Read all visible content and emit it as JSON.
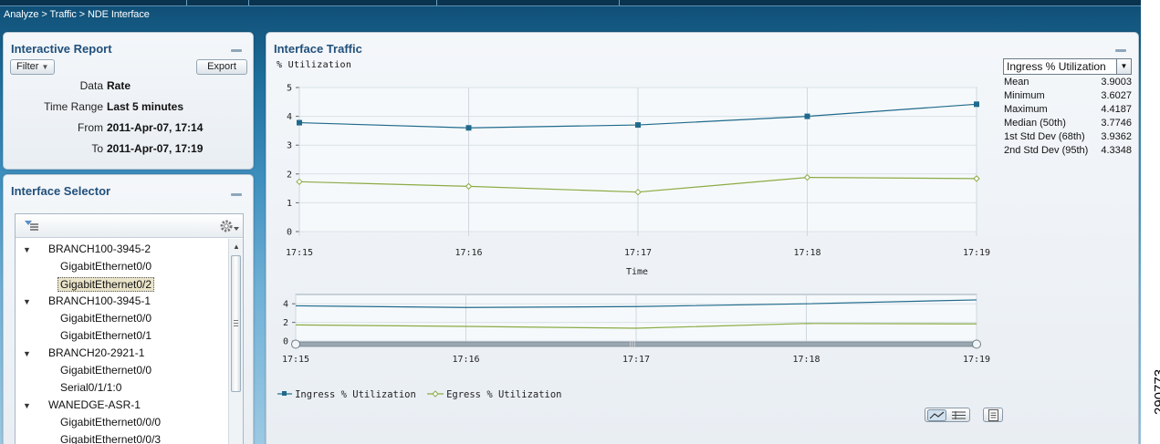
{
  "breadcrumb": "Analyze > Traffic > NDE Interface",
  "report": {
    "title": "Interactive Report",
    "filter_label": "Filter",
    "export_label": "Export",
    "fields": [
      {
        "label": "Data",
        "value": "Rate"
      },
      {
        "label": "Time Range",
        "value": "Last 5 minutes"
      },
      {
        "label": "From",
        "value": "2011-Apr-07, 17:14"
      },
      {
        "label": "To",
        "value": "2011-Apr-07, 17:19"
      }
    ]
  },
  "selector": {
    "title": "Interface Selector",
    "tree": [
      {
        "text": "BRANCH100-3945-2",
        "level": 0,
        "expanded": true
      },
      {
        "text": "GigabitEthernet0/0",
        "level": 1
      },
      {
        "text": "GigabitEthernet0/2",
        "level": 1,
        "selected": true
      },
      {
        "text": "BRANCH100-3945-1",
        "level": 0,
        "expanded": true
      },
      {
        "text": "GigabitEthernet0/0",
        "level": 1
      },
      {
        "text": "GigabitEthernet0/1",
        "level": 1
      },
      {
        "text": "BRANCH20-2921-1",
        "level": 0,
        "expanded": true
      },
      {
        "text": "GigabitEthernet0/0",
        "level": 1
      },
      {
        "text": "Serial0/1/1:0",
        "level": 1
      },
      {
        "text": "WANEDGE-ASR-1",
        "level": 0,
        "expanded": true
      },
      {
        "text": "GigabitEthernet0/0/0",
        "level": 1
      },
      {
        "text": "GigabitEthernet0/0/3",
        "level": 1
      }
    ]
  },
  "traffic": {
    "title": "Interface Traffic",
    "ylabel": "% Utilization",
    "metric_select": "Ingress % Utilization",
    "stats": [
      {
        "label": "Mean",
        "value": "3.9003"
      },
      {
        "label": "Minimum",
        "value": "3.6027"
      },
      {
        "label": "Maximum",
        "value": "4.4187"
      },
      {
        "label": "Median (50th)",
        "value": "3.7746"
      },
      {
        "label": "1st Std Dev (68th)",
        "value": "3.9362"
      },
      {
        "label": "2nd Std Dev (95th)",
        "value": "4.3348"
      }
    ],
    "legend": {
      "ingress": "Ingress % Utilization",
      "egress": "Egress % Utilization"
    }
  },
  "figure_id": "290773",
  "colors": {
    "ingress": "#1f6a8c",
    "egress": "#8bab45",
    "panel_title": "#21507b"
  },
  "chart_data": {
    "type": "line",
    "ylabel": "% Utilization",
    "xlabel": "Time",
    "x": [
      "17:15",
      "17:16",
      "17:17",
      "17:18",
      "17:19"
    ],
    "ylim": [
      0,
      5
    ],
    "yticks": [
      "0",
      "1",
      "2",
      "3",
      "4",
      "5"
    ],
    "series": [
      {
        "name": "Ingress % Utilization",
        "values": [
          3.78,
          3.6,
          3.7,
          4.0,
          4.42
        ]
      },
      {
        "name": "Egress % Utilization",
        "values": [
          1.73,
          1.57,
          1.37,
          1.88,
          1.84
        ]
      }
    ],
    "grid": true,
    "overview": {
      "ylim": [
        0,
        5
      ],
      "yticks": [
        "0",
        "2",
        "4"
      ],
      "x": [
        "17:15",
        "17:16",
        "17:17",
        "17:18",
        "17:19"
      ]
    }
  }
}
